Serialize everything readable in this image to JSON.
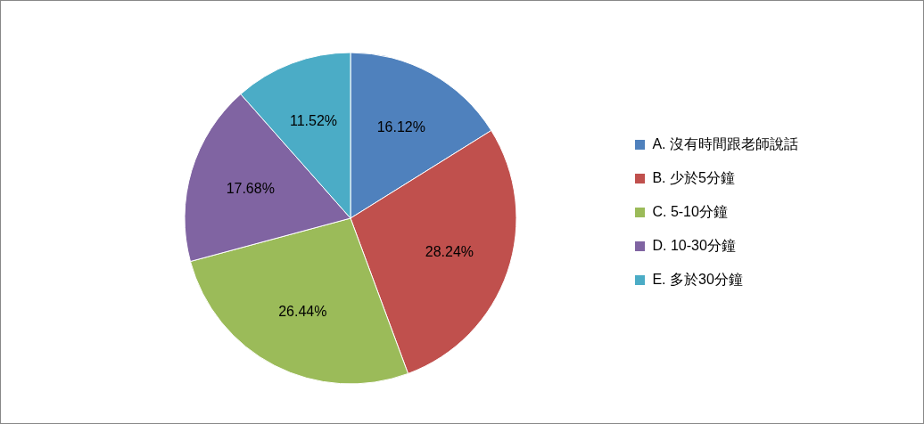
{
  "chart_data": {
    "type": "pie",
    "categories": [
      "A. 沒有時間跟老師說話",
      "B. 少於5分鐘",
      "C. 5-10分鐘",
      "D. 10-30分鐘",
      "E. 多於30分鐘"
    ],
    "values": [
      16.12,
      28.24,
      26.44,
      17.68,
      11.52
    ],
    "colors": [
      "#4f81bd",
      "#c0504d",
      "#9bbb59",
      "#8064a2",
      "#4bacc6"
    ],
    "value_labels": [
      "16.12%",
      "28.24%",
      "26.44%",
      "17.68%",
      "11.52%"
    ],
    "legend": "right"
  }
}
